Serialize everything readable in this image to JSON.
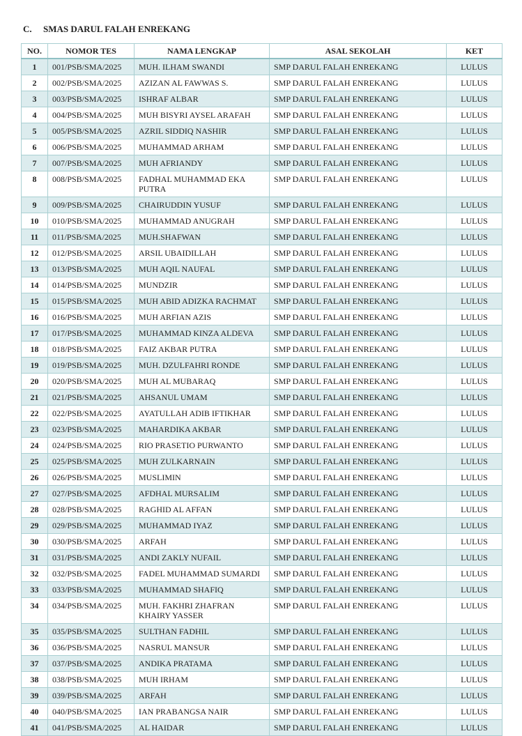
{
  "header": {
    "section": "C.",
    "title": "SMAS DARUL FALAH ENREKANG"
  },
  "table": {
    "columns": [
      "NO.",
      "NOMOR TES",
      "NAMA LENGKAP",
      "ASAL SEKOLAH",
      "KET"
    ],
    "rows": [
      [
        "1",
        "001/PSB/SMA/2025",
        "MUH. ILHAM SWANDI",
        "SMP DARUL FALAH ENREKANG",
        "LULUS"
      ],
      [
        "2",
        "002/PSB/SMA/2025",
        "AZIZAN AL FAWWAS S.",
        "SMP DARUL FALAH ENREKANG",
        "LULUS"
      ],
      [
        "3",
        "003/PSB/SMA/2025",
        "ISHRAF ALBAR",
        "SMP DARUL FALAH ENREKANG",
        "LULUS"
      ],
      [
        "4",
        "004/PSB/SMA/2025",
        "MUH BISYRI AYSEL ARAFAH",
        "SMP DARUL FALAH ENREKANG",
        "LULUS"
      ],
      [
        "5",
        "005/PSB/SMA/2025",
        "AZRIL SIDDIQ NASHIR",
        "SMP DARUL FALAH ENREKANG",
        "LULUS"
      ],
      [
        "6",
        "006/PSB/SMA/2025",
        "MUHAMMAD ARHAM",
        "SMP DARUL FALAH ENREKANG",
        "LULUS"
      ],
      [
        "7",
        "007/PSB/SMA/2025",
        "MUH AFRIANDY",
        "SMP DARUL FALAH ENREKANG",
        "LULUS"
      ],
      [
        "8",
        "008/PSB/SMA/2025",
        "FADHAL MUHAMMAD EKA PUTRA",
        "SMP DARUL FALAH ENREKANG",
        "LULUS"
      ],
      [
        "9",
        "009/PSB/SMA/2025",
        "CHAIRUDDIN YUSUF",
        "SMP DARUL FALAH ENREKANG",
        "LULUS"
      ],
      [
        "10",
        "010/PSB/SMA/2025",
        "MUHAMMAD ANUGRAH",
        "SMP DARUL FALAH ENREKANG",
        "LULUS"
      ],
      [
        "11",
        "011/PSB/SMA/2025",
        "MUH.SHAFWAN",
        "SMP DARUL FALAH ENREKANG",
        "LULUS"
      ],
      [
        "12",
        "012/PSB/SMA/2025",
        "ARSIL UBAIDILLAH",
        "SMP DARUL FALAH ENREKANG",
        "LULUS"
      ],
      [
        "13",
        "013/PSB/SMA/2025",
        "MUH AQIL NAUFAL",
        "SMP DARUL FALAH ENREKANG",
        "LULUS"
      ],
      [
        "14",
        "014/PSB/SMA/2025",
        "MUNDZIR",
        "SMP DARUL FALAH ENREKANG",
        "LULUS"
      ],
      [
        "15",
        "015/PSB/SMA/2025",
        "MUH ABID ADIZKA RACHMAT",
        "SMP DARUL FALAH ENREKANG",
        "LULUS"
      ],
      [
        "16",
        "016/PSB/SMA/2025",
        "MUH ARFIAN AZIS",
        "SMP DARUL FALAH ENREKANG",
        "LULUS"
      ],
      [
        "17",
        "017/PSB/SMA/2025",
        "MUHAMMAD KINZA ALDEVA",
        "SMP DARUL FALAH ENREKANG",
        "LULUS"
      ],
      [
        "18",
        "018/PSB/SMA/2025",
        "FAIZ AKBAR PUTRA",
        "SMP DARUL FALAH ENREKANG",
        "LULUS"
      ],
      [
        "19",
        "019/PSB/SMA/2025",
        "MUH. DZULFAHRI RONDE",
        "SMP DARUL FALAH ENREKANG",
        "LULUS"
      ],
      [
        "20",
        "020/PSB/SMA/2025",
        "MUH AL MUBARAQ",
        "SMP DARUL FALAH ENREKANG",
        "LULUS"
      ],
      [
        "21",
        "021/PSB/SMA/2025",
        "AHSANUL UMAM",
        "SMP DARUL FALAH ENREKANG",
        "LULUS"
      ],
      [
        "22",
        "022/PSB/SMA/2025",
        "AYATULLAH ADIB IFTIKHAR",
        "SMP DARUL FALAH ENREKANG",
        "LULUS"
      ],
      [
        "23",
        "023/PSB/SMA/2025",
        "MAHARDIKA AKBAR",
        "SMP DARUL FALAH ENREKANG",
        "LULUS"
      ],
      [
        "24",
        "024/PSB/SMA/2025",
        "RIO PRASETIO PURWANTO",
        "SMP DARUL FALAH ENREKANG",
        "LULUS"
      ],
      [
        "25",
        "025/PSB/SMA/2025",
        "MUH ZULKARNAIN",
        "SMP DARUL FALAH ENREKANG",
        "LULUS"
      ],
      [
        "26",
        "026/PSB/SMA/2025",
        "MUSLIMIN",
        "SMP DARUL FALAH ENREKANG",
        "LULUS"
      ],
      [
        "27",
        "027/PSB/SMA/2025",
        "AFDHAL MURSALIM",
        "SMP DARUL FALAH ENREKANG",
        "LULUS"
      ],
      [
        "28",
        "028/PSB/SMA/2025",
        "RAGHID AL AFFAN",
        "SMP DARUL FALAH ENREKANG",
        "LULUS"
      ],
      [
        "29",
        "029/PSB/SMA/2025",
        "MUHAMMAD IYAZ",
        "SMP DARUL FALAH ENREKANG",
        "LULUS"
      ],
      [
        "30",
        "030/PSB/SMA/2025",
        "ARFAH",
        "SMP DARUL FALAH ENREKANG",
        "LULUS"
      ],
      [
        "31",
        "031/PSB/SMA/2025",
        "ANDI ZAKLY NUFAIL",
        "SMP DARUL FALAH ENREKANG",
        "LULUS"
      ],
      [
        "32",
        "032/PSB/SMA/2025",
        "FADEL MUHAMMAD SUMARDI",
        "SMP DARUL FALAH ENREKANG",
        "LULUS"
      ],
      [
        "33",
        "033/PSB/SMA/2025",
        "MUHAMMAD SHAFIQ",
        "SMP DARUL FALAH ENREKANG",
        "LULUS"
      ],
      [
        "34",
        "034/PSB/SMA/2025",
        "MUH. FAKHRI ZHAFRAN KHAIRY YASSER",
        "SMP DARUL FALAH ENREKANG",
        "LULUS"
      ],
      [
        "35",
        "035/PSB/SMA/2025",
        "SULTHAN FADHIL",
        "SMP DARUL FALAH ENREKANG",
        "LULUS"
      ],
      [
        "36",
        "036/PSB/SMA/2025",
        "NASRUL MANSUR",
        "SMP DARUL FALAH ENREKANG",
        "LULUS"
      ],
      [
        "37",
        "037/PSB/SMA/2025",
        "ANDIKA PRATAMA",
        "SMP DARUL FALAH ENREKANG",
        "LULUS"
      ],
      [
        "38",
        "038/PSB/SMA/2025",
        "MUH IRHAM",
        "SMP DARUL FALAH ENREKANG",
        "LULUS"
      ],
      [
        "39",
        "039/PSB/SMA/2025",
        "ARFAH",
        "SMP DARUL FALAH ENREKANG",
        "LULUS"
      ],
      [
        "40",
        "040/PSB/SMA/2025",
        "IAN PRABANGSA NAIR",
        "SMP DARUL FALAH ENREKANG",
        "LULUS"
      ],
      [
        "41",
        "041/PSB/SMA/2025",
        "AL HAIDAR",
        "SMP DARUL FALAH ENREKANG",
        "LULUS"
      ]
    ]
  }
}
